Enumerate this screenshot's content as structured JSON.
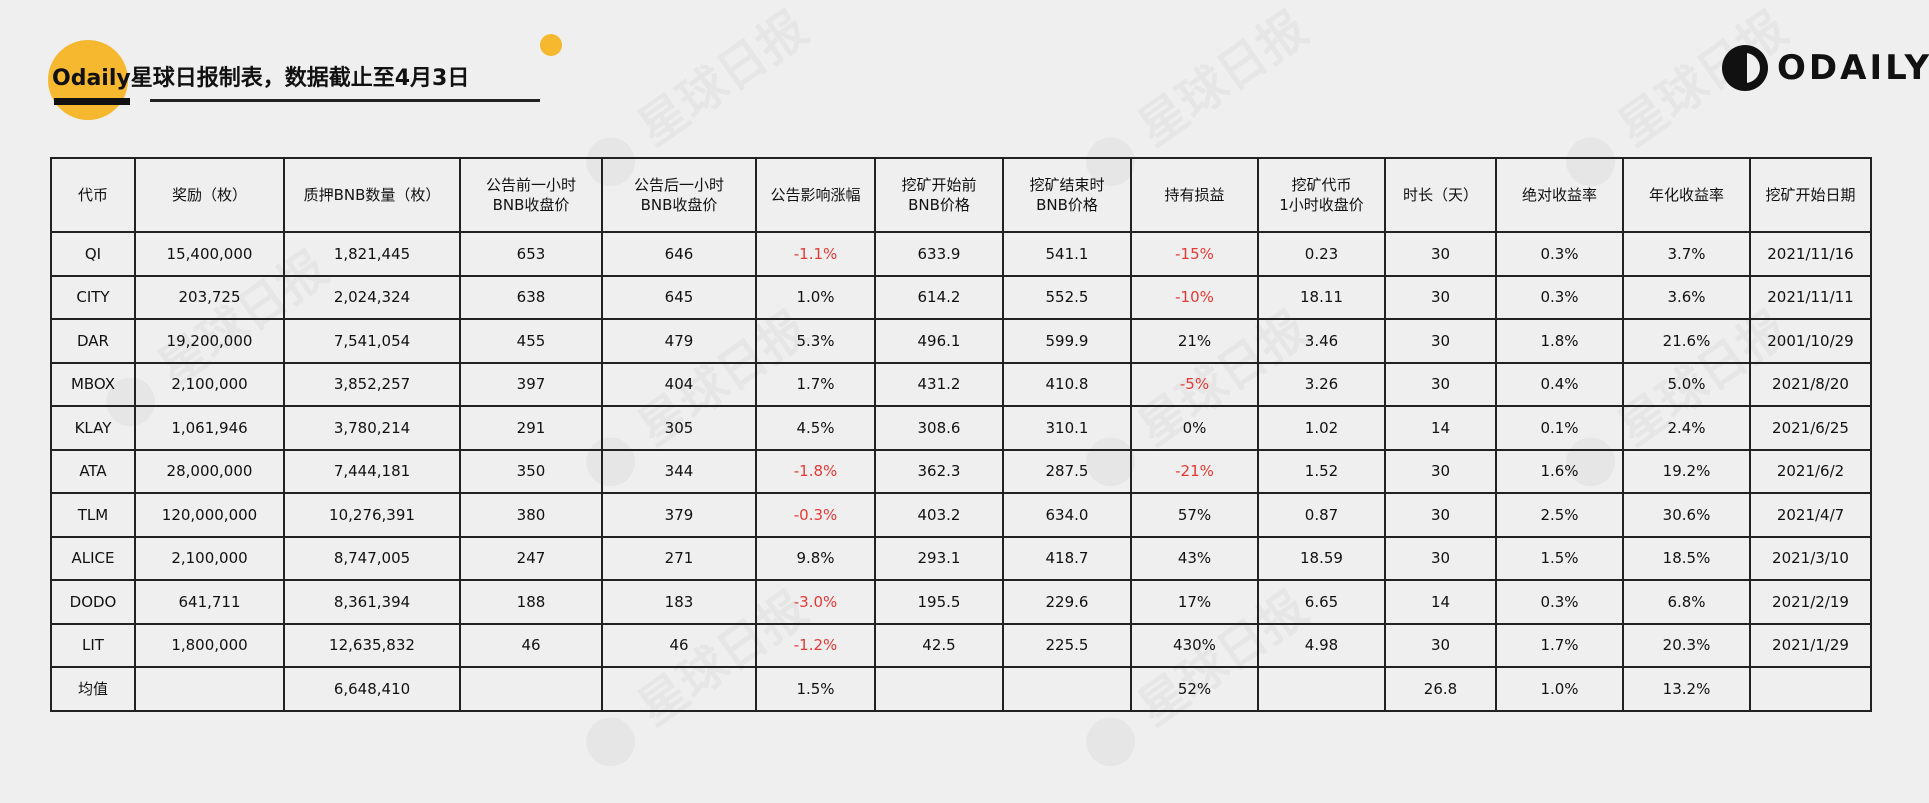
{
  "title": "Odaily星球日报制表，数据截止至4月3日",
  "logo_text": "ODAILY",
  "columns": [
    {
      "l1": "代币",
      "l2": ""
    },
    {
      "l1": "奖励（枚）",
      "l2": ""
    },
    {
      "l1": "质押BNB数量（枚）",
      "l2": ""
    },
    {
      "l1": "公告前一小时",
      "l2": "BNB收盘价"
    },
    {
      "l1": "公告后一小时",
      "l2": "BNB收盘价"
    },
    {
      "l1": "公告影响涨幅",
      "l2": ""
    },
    {
      "l1": "挖矿开始前",
      "l2": "BNB价格"
    },
    {
      "l1": "挖矿结束时",
      "l2": "BNB价格"
    },
    {
      "l1": "持有损益",
      "l2": ""
    },
    {
      "l1": "挖矿代币",
      "l2": "1小时收盘价"
    },
    {
      "l1": "时长（天）",
      "l2": ""
    },
    {
      "l1": "绝对收益率",
      "l2": ""
    },
    {
      "l1": "年化收益率",
      "l2": ""
    },
    {
      "l1": "挖矿开始日期",
      "l2": ""
    }
  ],
  "rows": [
    [
      "QI",
      "15,400,000",
      "1,821,445",
      "653",
      "646",
      "-1.1%",
      "633.9",
      "541.1",
      "-15%",
      "0.23",
      "30",
      "0.3%",
      "3.7%",
      "2021/11/16"
    ],
    [
      "CITY",
      "203,725",
      "2,024,324",
      "638",
      "645",
      "1.0%",
      "614.2",
      "552.5",
      "-10%",
      "18.11",
      "30",
      "0.3%",
      "3.6%",
      "2021/11/11"
    ],
    [
      "DAR",
      "19,200,000",
      "7,541,054",
      "455",
      "479",
      "5.3%",
      "496.1",
      "599.9",
      "21%",
      "3.46",
      "30",
      "1.8%",
      "21.6%",
      "2001/10/29"
    ],
    [
      "MBOX",
      "2,100,000",
      "3,852,257",
      "397",
      "404",
      "1.7%",
      "431.2",
      "410.8",
      "-5%",
      "3.26",
      "30",
      "0.4%",
      "5.0%",
      "2021/8/20"
    ],
    [
      "KLAY",
      "1,061,946",
      "3,780,214",
      "291",
      "305",
      "4.5%",
      "308.6",
      "310.1",
      "0%",
      "1.02",
      "14",
      "0.1%",
      "2.4%",
      "2021/6/25"
    ],
    [
      "ATA",
      "28,000,000",
      "7,444,181",
      "350",
      "344",
      "-1.8%",
      "362.3",
      "287.5",
      "-21%",
      "1.52",
      "30",
      "1.6%",
      "19.2%",
      "2021/6/2"
    ],
    [
      "TLM",
      "120,000,000",
      "10,276,391",
      "380",
      "379",
      "-0.3%",
      "403.2",
      "634.0",
      "57%",
      "0.87",
      "30",
      "2.5%",
      "30.6%",
      "2021/4/7"
    ],
    [
      "ALICE",
      "2,100,000",
      "8,747,005",
      "247",
      "271",
      "9.8%",
      "293.1",
      "418.7",
      "43%",
      "18.59",
      "30",
      "1.5%",
      "18.5%",
      "2021/3/10"
    ],
    [
      "DODO",
      "641,711",
      "8,361,394",
      "188",
      "183",
      "-3.0%",
      "195.5",
      "229.6",
      "17%",
      "6.65",
      "14",
      "0.3%",
      "6.8%",
      "2021/2/19"
    ],
    [
      "LIT",
      "1,800,000",
      "12,635,832",
      "46",
      "46",
      "-1.2%",
      "42.5",
      "225.5",
      "430%",
      "4.98",
      "30",
      "1.7%",
      "20.3%",
      "2021/1/29"
    ],
    [
      "均值",
      "",
      "6,648,410",
      "",
      "",
      "1.5%",
      "",
      "",
      "52%",
      "",
      "26.8",
      "1.0%",
      "13.2%",
      ""
    ]
  ],
  "colors": {
    "accent": "#f5b82e",
    "negative": "#e53935",
    "background": "#efefef"
  }
}
